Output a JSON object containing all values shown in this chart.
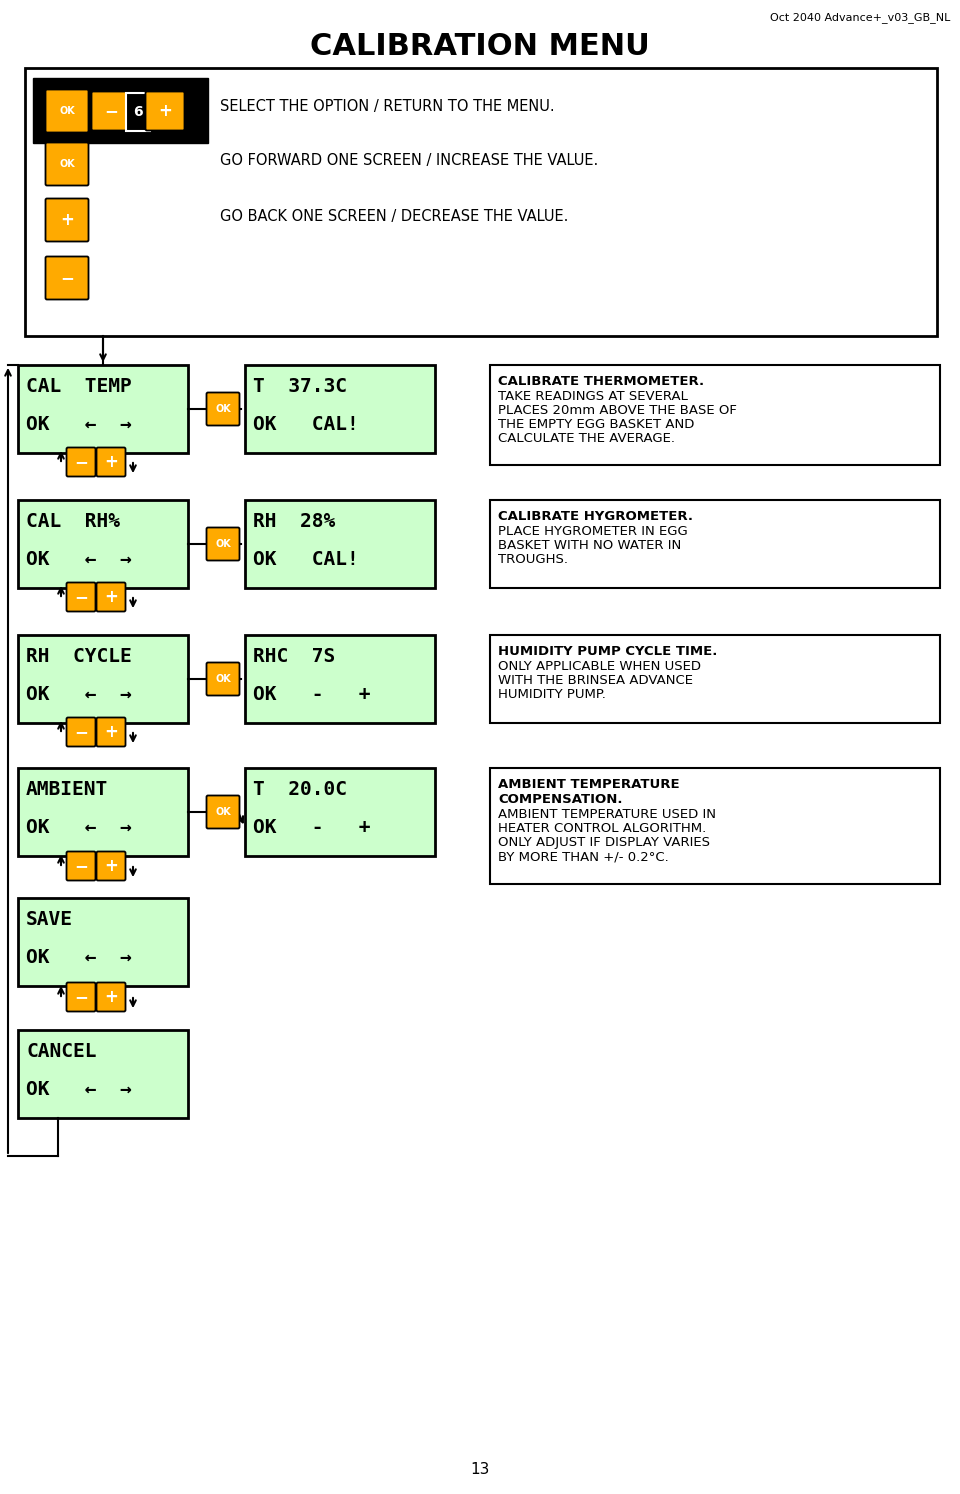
{
  "title": "CALIBRATION MENU",
  "header_note": "Oct 2040 Advance+_v03_GB_NL",
  "page_number": "13",
  "bg_color": "#ffffff",
  "green_box_color": "#ccffcc",
  "orange_color": "#ffaa00",
  "menu_items": [
    {
      "label1": "CAL  TEMP",
      "label2": "OK   ←  →",
      "screen_line1": "T  37.3C",
      "screen_line2": "OK   CAL!",
      "desc_bold": "CALIBRATE THERMOMETER.",
      "desc_text": "TAKE READINGS AT SEVERAL\nPLACES 20mm ABOVE THE BASE OF\nTHE EMPTY EGG BASKET AND\nCALCULATE THE AVERAGE.",
      "diagonal": false
    },
    {
      "label1": "CAL  RH%",
      "label2": "OK   ←  →",
      "screen_line1": "RH  28%",
      "screen_line2": "OK   CAL!",
      "desc_bold": "CALIBRATE HYGROMETER.",
      "desc_text": "PLACE HYGROMETER IN EGG\nBASKET WITH NO WATER IN\nTROUGHS.",
      "diagonal": false
    },
    {
      "label1": "RH  CYCLE",
      "label2": "OK   ←  →",
      "screen_line1": "RHC  7S",
      "screen_line2": "OK   -   +",
      "desc_bold": "HUMIDITY PUMP CYCLE TIME.",
      "desc_text": "ONLY APPLICABLE WHEN USED\nWITH THE BRINSEA ADVANCE\nHUMIDITY PUMP.",
      "diagonal": false
    },
    {
      "label1": "AMBIENT",
      "label2": "OK   ←  →",
      "screen_line1": "T  20.0C",
      "screen_line2": "OK   -   +",
      "desc_bold": "AMBIENT TEMPERATURE\nCOMPENSATION.",
      "desc_text": "AMBIENT TEMPERATURE USED IN\nHEATER CONTROL ALGORITHM.\nONLY ADJUST IF DISPLAY VARIES\nBY MORE THAN +/- 0.2°C.",
      "diagonal": true
    }
  ]
}
